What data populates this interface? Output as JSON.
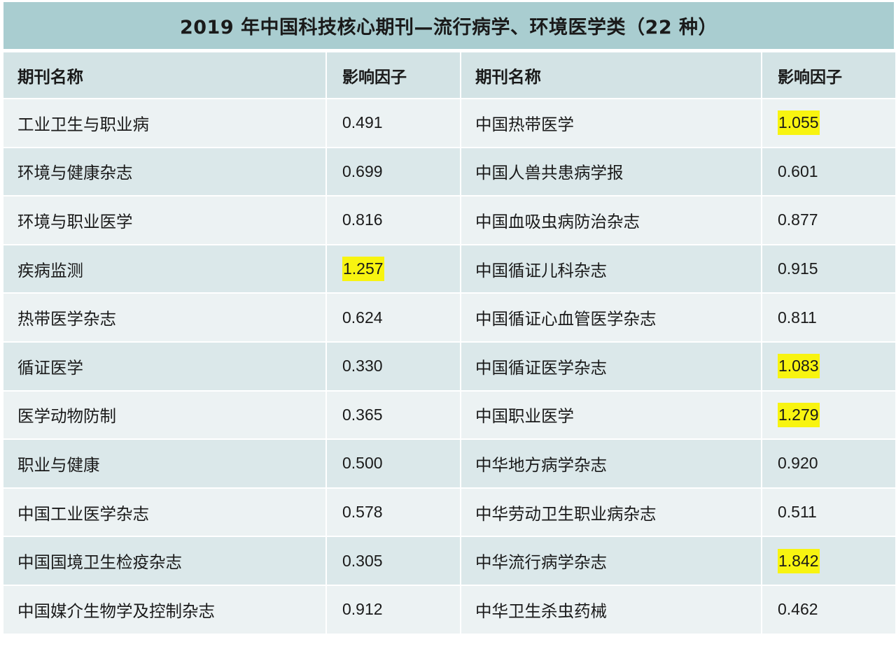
{
  "title": "2019 年中国科技核心期刊—流行病学、环境医学类（22 种）",
  "headers": {
    "name_left": "期刊名称",
    "if_left": "影响因子",
    "name_right": "期刊名称",
    "if_right": "影响因子"
  },
  "rows": [
    {
      "left_name": "工业卫生与职业病",
      "left_if": "0.491",
      "left_hl": false,
      "right_name": "中国热带医学",
      "right_if": "1.055",
      "right_hl": true
    },
    {
      "left_name": "环境与健康杂志",
      "left_if": "0.699",
      "left_hl": false,
      "right_name": "中国人兽共患病学报",
      "right_if": "0.601",
      "right_hl": false
    },
    {
      "left_name": "环境与职业医学",
      "left_if": "0.816",
      "left_hl": false,
      "right_name": "中国血吸虫病防治杂志",
      "right_if": "0.877",
      "right_hl": false
    },
    {
      "left_name": "疾病监测",
      "left_if": "1.257",
      "left_hl": true,
      "right_name": "中国循证儿科杂志",
      "right_if": "0.915",
      "right_hl": false
    },
    {
      "left_name": "热带医学杂志",
      "left_if": "0.624",
      "left_hl": false,
      "right_name": "中国循证心血管医学杂志",
      "right_if": "0.811",
      "right_hl": false
    },
    {
      "left_name": "循证医学",
      "left_if": "0.330",
      "left_hl": false,
      "right_name": "中国循证医学杂志",
      "right_if": "1.083",
      "right_hl": true
    },
    {
      "left_name": "医学动物防制",
      "left_if": "0.365",
      "left_hl": false,
      "right_name": "中国职业医学",
      "right_if": "1.279",
      "right_hl": true
    },
    {
      "left_name": "职业与健康",
      "left_if": "0.500",
      "left_hl": false,
      "right_name": "中华地方病学杂志",
      "right_if": "0.920",
      "right_hl": false
    },
    {
      "left_name": "中国工业医学杂志",
      "left_if": "0.578",
      "left_hl": false,
      "right_name": "中华劳动卫生职业病杂志",
      "right_if": "0.511",
      "right_hl": false
    },
    {
      "left_name": "中国国境卫生检疫杂志",
      "left_if": "0.305",
      "left_hl": false,
      "right_name": "中华流行病学杂志",
      "right_if": "1.842",
      "right_hl": true
    },
    {
      "left_name": "中国媒介生物学及控制杂志",
      "left_if": "0.912",
      "left_hl": false,
      "right_name": "中华卫生杀虫药械",
      "right_if": "0.462",
      "right_hl": false
    }
  ],
  "colors": {
    "title_bg": "#a9cdd0",
    "header_bg": "#d3e3e5",
    "row_light": "#ecf2f3",
    "row_dark": "#dbe8ea",
    "highlight": "#f8f410"
  }
}
